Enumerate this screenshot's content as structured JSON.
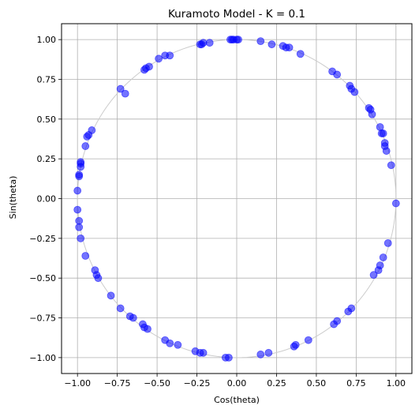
{
  "chart_data": {
    "type": "scatter",
    "title": "Kuramoto Model - K = 0.1",
    "xlabel": "Cos(theta)",
    "ylabel": "Sin(theta)",
    "xlim": [
      -1.1,
      1.1
    ],
    "ylim": [
      -1.1,
      1.1
    ],
    "xticks": [
      -1.0,
      -0.75,
      -0.5,
      -0.25,
      0.0,
      0.25,
      0.5,
      0.75,
      1.0
    ],
    "yticks": [
      -1.0,
      -0.75,
      -0.5,
      -0.25,
      0.0,
      0.25,
      0.5,
      0.75,
      1.0
    ],
    "xtick_labels": [
      "−1.00",
      "−0.75",
      "−0.50",
      "−0.25",
      "0.00",
      "0.25",
      "0.50",
      "0.75",
      "1.00"
    ],
    "ytick_labels": [
      "−1.00",
      "−0.75",
      "−0.50",
      "−0.25",
      "0.00",
      "0.25",
      "0.50",
      "0.75",
      "1.00"
    ],
    "grid": true,
    "reference_circle": {
      "center": [
        0,
        0
      ],
      "radius": 1.0,
      "color": "#cccccc"
    },
    "marker_color": "#0000ff",
    "marker_alpha": 0.55,
    "series": [
      {
        "x": [
          -0.04,
          -0.03,
          -0.02,
          0.0,
          0.01,
          0.15,
          0.22,
          0.29,
          0.31,
          0.33,
          0.4,
          0.6,
          0.63,
          0.71,
          0.72,
          0.74,
          0.83,
          0.84,
          0.85,
          0.9,
          0.91,
          0.92,
          0.93,
          0.93,
          0.94,
          0.97,
          1.0,
          0.95,
          0.92,
          0.9,
          0.89,
          0.86,
          0.72,
          0.7,
          0.63,
          0.61,
          0.45,
          0.37,
          0.36,
          0.2,
          0.15,
          -0.05,
          -0.07,
          -0.21,
          -0.23,
          -0.26,
          -0.37,
          -0.42,
          -0.45,
          -0.56,
          -0.58,
          -0.59,
          -0.65,
          -0.67,
          -0.73,
          -0.79,
          -0.87,
          -0.88,
          -0.89,
          -0.95,
          -0.98,
          -0.99,
          -0.99,
          -1.0,
          -1.0,
          -0.99,
          -0.99,
          -0.98,
          -0.98,
          -0.98,
          -0.95,
          -0.94,
          -0.93,
          -0.91,
          -0.73,
          -0.7,
          -0.58,
          -0.57,
          -0.55,
          -0.49,
          -0.45,
          -0.42,
          -0.23,
          -0.22,
          -0.21,
          -0.17
        ],
        "y": [
          1.0,
          1.0,
          1.0,
          1.0,
          1.0,
          0.99,
          0.97,
          0.96,
          0.95,
          0.95,
          0.91,
          0.8,
          0.78,
          0.71,
          0.69,
          0.67,
          0.57,
          0.56,
          0.53,
          0.45,
          0.41,
          0.41,
          0.35,
          0.33,
          0.3,
          0.21,
          -0.03,
          -0.28,
          -0.37,
          -0.42,
          -0.45,
          -0.48,
          -0.69,
          -0.71,
          -0.77,
          -0.79,
          -0.89,
          -0.92,
          -0.93,
          -0.97,
          -0.98,
          -1.0,
          -1.0,
          -0.97,
          -0.97,
          -0.96,
          -0.92,
          -0.91,
          -0.89,
          -0.82,
          -0.81,
          -0.79,
          -0.75,
          -0.74,
          -0.69,
          -0.61,
          -0.5,
          -0.48,
          -0.45,
          -0.36,
          -0.25,
          -0.18,
          -0.14,
          -0.07,
          0.05,
          0.14,
          0.15,
          0.2,
          0.22,
          0.23,
          0.33,
          0.39,
          0.4,
          0.43,
          0.69,
          0.66,
          0.81,
          0.82,
          0.83,
          0.88,
          0.9,
          0.9,
          0.97,
          0.97,
          0.98,
          0.98
        ]
      }
    ]
  }
}
